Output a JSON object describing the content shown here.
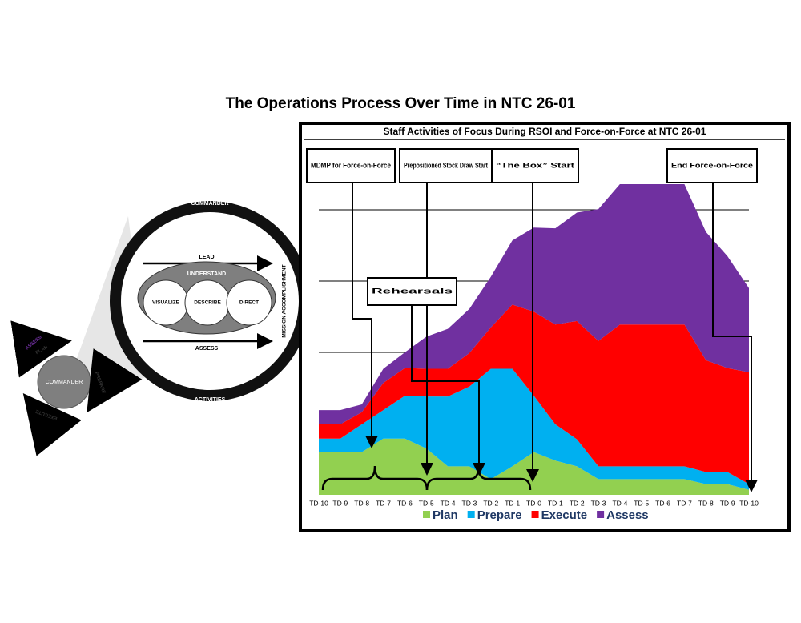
{
  "title": "The Operations Process Over Time in NTC 26-01",
  "diagram": {
    "ring_top": "COMMANDER",
    "ring_bottom": "ACTIVITIES",
    "ring_side": "MISSION ACCOMPLISHMENT",
    "lead": "LEAD",
    "understand": "UNDERSTAND",
    "visualize": "VISUALIZE",
    "describe": "DESCRIBE",
    "direct": "DIRECT",
    "assess": "ASSESS",
    "cycle_center": "COMMANDER",
    "cycle_plan": "PLAN",
    "cycle_prepare": "PREPARE",
    "cycle_execute": "EXECUTE",
    "cycle_assess": "ASSESS"
  },
  "chart_data": {
    "type": "stacked-area",
    "title": "Staff Activities of Focus During RSOI and Force-on-Force at NTC 26-01",
    "categories": [
      "TD-10",
      "TD-9",
      "TD-8",
      "TD-7",
      "TD-6",
      "TD-5",
      "TD-4",
      "TD-3",
      "TD-2",
      "TD-1",
      "TD-0",
      "TD-1",
      "TD-2",
      "TD-3",
      "TD-4",
      "TD-5",
      "TD-6",
      "TD-7",
      "TD-8",
      "TD-9",
      "TD-10"
    ],
    "series": [
      {
        "name": "Plan",
        "color": "#92d050",
        "values": [
          6.0,
          6.0,
          6.0,
          7.9,
          7.9,
          6.5,
          4.0,
          4.0,
          2.2,
          4.0,
          6.0,
          4.8,
          4.0,
          2.2,
          2.2,
          2.2,
          2.2,
          2.2,
          1.5,
          1.5,
          0.7
        ]
      },
      {
        "name": "Prepare",
        "color": "#00b0f0",
        "values": [
          1.9,
          1.9,
          3.9,
          4.0,
          6.0,
          7.3,
          9.8,
          11.2,
          15.5,
          13.7,
          7.9,
          5.1,
          3.8,
          1.8,
          1.8,
          1.8,
          1.8,
          1.8,
          1.7,
          1.7,
          0.8
        ]
      },
      {
        "name": "Execute",
        "color": "#ff0000",
        "values": [
          2.0,
          2.0,
          1.7,
          3.8,
          3.9,
          3.9,
          3.9,
          4.7,
          5.8,
          9.0,
          11.8,
          14.0,
          16.6,
          17.6,
          19.9,
          19.9,
          19.9,
          19.9,
          15.7,
          14.6,
          15.7
        ]
      },
      {
        "name": "Assess",
        "color": "#7030a0",
        "values": [
          2.0,
          2.0,
          1.1,
          2.0,
          2.2,
          4.5,
          5.6,
          6.2,
          7.1,
          9.0,
          11.8,
          13.5,
          15.2,
          18.5,
          19.7,
          19.7,
          19.7,
          19.7,
          18.0,
          15.7,
          11.8
        ]
      }
    ],
    "ylim": [
      0,
      50
    ],
    "yticks": [
      10,
      20,
      30,
      40
    ],
    "grid": true,
    "annotations": [
      "MDMP for Force-on-Force",
      "Prepositioned Stock Draw Start",
      "“The Box” Start",
      "End Force-on-Force",
      "Rehearsals"
    ]
  }
}
